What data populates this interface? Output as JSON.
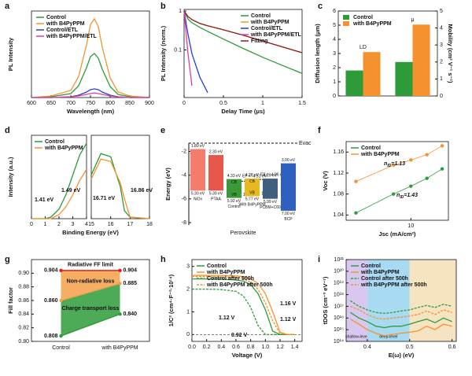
{
  "chart_data": [
    {
      "label": "a",
      "type": "line",
      "xlabel": "Wavelength (nm)",
      "ylabel": "PL Intensity",
      "xlim": [
        600,
        900
      ],
      "xticks": [
        600,
        650,
        700,
        750,
        800,
        850,
        900
      ],
      "ylim": [
        0,
        1.1
      ],
      "x": [
        600,
        650,
        700,
        720,
        740,
        750,
        760,
        770,
        780,
        800,
        820,
        850,
        900
      ],
      "series": [
        {
          "name": "Control",
          "color": "#2e9b3a",
          "values": [
            0,
            0.01,
            0.05,
            0.15,
            0.38,
            0.52,
            0.56,
            0.5,
            0.36,
            0.14,
            0.04,
            0.01,
            0
          ]
        },
        {
          "name": "with B4PyPPM",
          "color": "#f5922f",
          "values": [
            0,
            0.02,
            0.09,
            0.27,
            0.67,
            0.93,
            1.0,
            0.9,
            0.64,
            0.25,
            0.07,
            0.02,
            0
          ]
        },
        {
          "name": "Control/ETL",
          "color": "#2340d0",
          "values": [
            0,
            0,
            0.01,
            0.03,
            0.07,
            0.1,
            0.11,
            0.1,
            0.07,
            0.03,
            0.01,
            0,
            0
          ]
        },
        {
          "name": "with B4PyPPM/ETL",
          "color": "#e33aa0",
          "values": [
            0,
            0,
            0.01,
            0.02,
            0.04,
            0.05,
            0.06,
            0.05,
            0.04,
            0.02,
            0.01,
            0,
            0
          ]
        }
      ]
    },
    {
      "label": "b",
      "type": "line",
      "xlabel": "Delay Time (μs)",
      "ylabel": "PL Intensity (norm.)",
      "xlim": [
        0,
        1.5
      ],
      "xticks": [
        0,
        0.5,
        1,
        1.5
      ],
      "ylim": [
        0.006,
        1.1
      ],
      "yticks": [
        1,
        0.1
      ],
      "ylog": true,
      "x": [
        0,
        0.05,
        0.1,
        0.2,
        0.3,
        0.5,
        0.75,
        1,
        1.25,
        1.5
      ],
      "series": [
        {
          "name": "Control",
          "color": "#2e9b3a",
          "values": [
            1,
            0.62,
            0.5,
            0.38,
            0.3,
            0.19,
            0.11,
            0.065,
            0.04,
            0.025
          ]
        },
        {
          "name": "with B4PyPPM",
          "color": "#f5922f",
          "values": [
            1,
            0.72,
            0.6,
            0.48,
            0.42,
            0.33,
            0.24,
            0.17,
            0.12,
            0.085
          ]
        },
        {
          "name": "Control/ETL",
          "color": "#2340d0",
          "values": [
            1,
            0.25,
            0.08,
            0.02,
            0.008,
            null,
            null,
            null,
            null,
            null
          ]
        },
        {
          "name": "with B4PyPPM/ETL",
          "color": "#e33aa0",
          "values": [
            1,
            0.08,
            0.012,
            null,
            null,
            null,
            null,
            null,
            null,
            null
          ]
        },
        {
          "name": "Fitting",
          "color": "#8b2020",
          "values": [
            1,
            0.72,
            0.6,
            0.48,
            0.42,
            0.33,
            0.24,
            0.17,
            0.12,
            0.085
          ]
        }
      ]
    },
    {
      "label": "c",
      "type": "bar",
      "ylabel": "Diffusion length (μm)",
      "y2label": "Mobility (cm² V⁻¹ s⁻¹)",
      "categories": [
        "LD",
        "μ"
      ],
      "category_axis": [
        "y",
        "y2"
      ],
      "ylim": [
        0,
        6
      ],
      "yticks": [
        0,
        1,
        2,
        3,
        4,
        5,
        6
      ],
      "y2lim": [
        0,
        5
      ],
      "y2ticks": [
        0,
        1,
        2,
        3,
        4,
        5
      ],
      "series": [
        {
          "name": "Control",
          "color": "#2e9b3a",
          "values": [
            1.8,
            2.0
          ]
        },
        {
          "name": "with B4PyPPM",
          "color": "#f5922f",
          "values": [
            3.1,
            4.2
          ]
        }
      ]
    },
    {
      "label": "d",
      "type": "line",
      "ylabel": "Intensity (a.u.)",
      "xlim": [
        0,
        4
      ],
      "xticks": [
        0,
        1,
        2,
        3,
        4
      ],
      "ylim": [
        0,
        1.05
      ],
      "x": [
        0,
        0.5,
        1,
        1.41,
        2,
        2.5,
        3,
        3.5,
        4
      ],
      "series": [
        {
          "name": "Control",
          "color": "#2e9b3a",
          "values": [
            0,
            0,
            0,
            0.02,
            0.12,
            0.3,
            0.55,
            0.8,
            0.95
          ]
        },
        {
          "name": "with B4PyPPM",
          "color": "#f5922f",
          "values": [
            0,
            0,
            0,
            0,
            0.05,
            0.15,
            0.3,
            0.48,
            0.62
          ]
        }
      ],
      "annotations": [
        {
          "text": "1.41 eV",
          "color": "#2e9b3a"
        },
        {
          "text": "1.49 eV",
          "color": "#f5922f"
        }
      ]
    },
    {
      "type": "line",
      "xlabel": "Binding Energy (eV)",
      "xlim": [
        15,
        18
      ],
      "xticks": [
        15,
        16,
        17,
        18
      ],
      "ylim": [
        0,
        1.05
      ],
      "x": [
        15,
        15.5,
        16,
        16.5,
        16.71,
        17,
        17.5,
        18
      ],
      "series": [
        {
          "color": "#2e9b3a",
          "values": [
            0.55,
            0.82,
            0.78,
            0.4,
            0.1,
            0.02,
            0.01,
            0
          ]
        },
        {
          "color": "#f5922f",
          "values": [
            0.5,
            0.75,
            0.72,
            0.45,
            0.25,
            0.02,
            0.01,
            0
          ]
        }
      ],
      "annotations": [
        {
          "text": "16.71 eV",
          "color": "#2e9b3a"
        },
        {
          "text": "16.86 eV",
          "color": "#f5922f"
        }
      ]
    },
    {
      "label": "e",
      "type": "energy",
      "ylabel": "Energy (eV)",
      "ylim": [
        -8.2,
        -1.3
      ],
      "yticks": [
        -2,
        -4,
        -6,
        -8
      ],
      "evac": "Evac",
      "group_label": "Perovskite",
      "blocks": [
        {
          "name": "NiOx",
          "color": "#f47c6c",
          "top": -1.8,
          "bottom": -5.3,
          "top_label": "1.80 eV",
          "bottom_label": "5.30 eV"
        },
        {
          "name": "PTAA",
          "color": "#e8584a",
          "top": -2.3,
          "bottom": -5.3,
          "top_label": "2.30 eV",
          "bottom_label": "5.30 eV"
        },
        {
          "name": "Control",
          "color": "#3a9a3a",
          "top": -4.33,
          "bottom": -5.92,
          "top_label": "4.33 eV",
          "bottom_label": "5.92 eV",
          "cb": "CB",
          "vb": "VB",
          "fermi": -4.51,
          "fermi_label": "EF = -4.51 eV",
          "gap_label": "1.61 eV"
        },
        {
          "name": "With B4PyPPM",
          "color": "#e8b820",
          "top": -4.28,
          "bottom": -5.77,
          "top_label": "4.28 eV",
          "bottom_label": "5.77 eV",
          "cb": "CB",
          "vb": "VB",
          "fermi": -4.36,
          "fermi_label": "EF = -4.36 eV",
          "gap_label": "1.49 eV"
        },
        {
          "name": "PCBM+C60",
          "color": "#3f5f7f",
          "top": -4.29,
          "bottom": -5.99,
          "top_label": "4.29 eV",
          "bottom_label": "5.99 eV"
        },
        {
          "name": "BCP",
          "color": "#2f5fbf",
          "top": -3.0,
          "bottom": -7.0,
          "top_label": "3.00 eV",
          "bottom_label": "7.00 eV"
        }
      ]
    },
    {
      "label": "f",
      "type": "scatter",
      "xlabel": "Jsc (mA/cm²)",
      "ylabel": "Voc (V)",
      "xlog": true,
      "xlim": [
        1.5,
        30
      ],
      "xticks": [
        10
      ],
      "ylim": [
        1.03,
        1.18
      ],
      "yticks": [
        1.04,
        1.08,
        1.12,
        1.16
      ],
      "x": [
        2,
        6,
        10,
        16,
        25
      ],
      "series": [
        {
          "name": "Control",
          "color": "#2e9b3a",
          "values": [
            1.044,
            1.08,
            1.095,
            1.11,
            1.128
          ]
        },
        {
          "name": "with B4PyPPM",
          "color": "#f5922f",
          "values": [
            1.104,
            1.135,
            1.145,
            1.155,
            1.172
          ]
        }
      ],
      "annotations": [
        {
          "text": "n",
          "sub": "ID",
          "tail": "=1.13",
          "color": "#f5922f"
        },
        {
          "text": "n",
          "sub": "ID",
          "tail": "=1.43",
          "color": "#2e9b3a"
        }
      ]
    },
    {
      "label": "g",
      "type": "ff",
      "ylabel": "Fill factor",
      "categories": [
        "Control",
        "with B4PyPPM"
      ],
      "ylim": [
        0.8,
        0.92
      ],
      "yticks": [
        {
          "value": 0.8,
          "label": "0.80"
        },
        0.82,
        0.84,
        0.86,
        0.88,
        {
          "value": 0.9,
          "label": "0.90"
        }
      ],
      "series": [
        {
          "name": "Radiative FF  limit",
          "color": "#e02020",
          "values": [
            0.904,
            0.904
          ]
        },
        {
          "name": "Non-radiative loss",
          "color": "#f5a04a",
          "values": [
            0.86,
            0.885
          ],
          "value_labels": [
            "0.860",
            "0.885"
          ]
        },
        {
          "name": "Charge transport loss",
          "color": "#2e9b3a",
          "values": [
            0.808,
            0.84
          ],
          "value_labels": [
            "0.808",
            "0.840"
          ]
        }
      ]
    },
    {
      "label": "h",
      "type": "line",
      "xlabel": "Voltage (V)",
      "ylabel": "1/C² (cm⁴·F⁻²·10¹⁴)",
      "xlim": [
        0,
        1.5
      ],
      "xticks": [
        {
          "value": 0,
          "label": "0.0"
        },
        0.2,
        0.4,
        0.6,
        0.8,
        {
          "value": 1,
          "label": "1.0"
        },
        1.2,
        1.4
      ],
      "ylim": [
        -0.3,
        3.3
      ],
      "yticks": [
        0,
        1,
        2,
        3
      ],
      "x": [
        0,
        0.2,
        0.4,
        0.6,
        0.7,
        0.8,
        0.9,
        1.0,
        1.1,
        1.2,
        1.3,
        1.4
      ],
      "series": [
        {
          "name": "Control",
          "color": "#2e9b3a",
          "values": [
            2.45,
            2.45,
            2.44,
            2.4,
            2.35,
            2.2,
            1.8,
            1.1,
            0.15,
            0,
            0,
            0
          ]
        },
        {
          "name": "with B4PyPPM",
          "color": "#f5922f",
          "values": [
            2.6,
            2.6,
            2.6,
            2.58,
            2.55,
            2.45,
            2.25,
            1.8,
            1.0,
            0.1,
            0,
            0
          ]
        },
        {
          "name": "Control after 500h",
          "color": "#2e9b3a",
          "dash": true,
          "values": [
            2.0,
            2.0,
            1.98,
            1.9,
            1.7,
            1.2,
            0.4,
            0,
            0,
            0,
            0,
            0
          ]
        },
        {
          "name": "with B4PyPPM after 500h",
          "color": "#f5922f",
          "dash": true,
          "values": [
            2.55,
            2.55,
            2.54,
            2.5,
            2.45,
            2.3,
            2.0,
            1.4,
            0.6,
            0.05,
            0,
            0
          ]
        }
      ],
      "annotations": [
        {
          "text": "1.12 V",
          "color": "#2e9b3a"
        },
        {
          "text": "0.92 V",
          "color": "#2e9b3a"
        },
        {
          "text": "1.16 V",
          "color": "#f5922f"
        },
        {
          "text": "1.12 V",
          "color": "#f5922f"
        }
      ]
    },
    {
      "label": "i",
      "type": "line",
      "xlabel": "E(ω) (eV)",
      "ylabel": "tDOS (cm⁻³ eV⁻¹)",
      "ylog": true,
      "xlim": [
        0.35,
        0.61
      ],
      "xticks": [
        0.4,
        0.5,
        0.6
      ],
      "ylim": [
        100000000000000.0,
        1e+21
      ],
      "yticks": [
        {
          "value": 100000000000000.0,
          "label": "10¹⁴"
        },
        {
          "value": 1000000000000000.0,
          "label": "10¹⁵"
        },
        {
          "value": 1e+16,
          "label": "10¹⁶"
        },
        {
          "value": 1e+17,
          "label": "10¹⁷"
        },
        {
          "value": 1e+18,
          "label": "10¹⁸"
        },
        {
          "value": 1e+19,
          "label": "10¹⁹"
        },
        {
          "value": 1e+20,
          "label": "10²⁰"
        },
        {
          "value": 1e+21,
          "label": "10²¹"
        }
      ],
      "regions": [
        {
          "from": 0.35,
          "to": 0.4,
          "color": "#d8c8f0",
          "label": "shallow-level"
        },
        {
          "from": 0.4,
          "to": 0.5,
          "color": "#a8daf2",
          "label": "deep-level"
        },
        {
          "from": 0.5,
          "to": 0.61,
          "color": "#f6e3c2"
        }
      ],
      "x": [
        0.36,
        0.38,
        0.4,
        0.42,
        0.44,
        0.46,
        0.48,
        0.5,
        0.52,
        0.54,
        0.56,
        0.58,
        0.6
      ],
      "series": [
        {
          "name": "Control",
          "color": "#2e9b3a",
          "values": [
            3e+16,
            1e+16,
            5000000000000000.0,
            2000000000000000.0,
            1500000000000000.0,
            2000000000000000.0,
            2000000000000000.0,
            3000000000000000.0,
            5000000000000000.0,
            8000000000000000.0,
            4000000000000000.0,
            1e+16,
            5000000000000000.0
          ]
        },
        {
          "name": "with B4PyPPM",
          "color": "#f5922f",
          "values": [
            8000000000000000.0,
            3000000000000000.0,
            1000000000000000.0,
            500000000000000.0,
            300000000000000.0,
            400000000000000.0,
            500000000000000.0,
            600000000000000.0,
            800000000000000.0,
            2000000000000000.0,
            1000000000000000.0,
            3000000000000000.0,
            2000000000000000.0
          ]
        },
        {
          "name": "Control after 500h",
          "color": "#2e9b3a",
          "dash": true,
          "values": [
            3e+17,
            1e+17,
            5e+16,
            3e+16,
            2.5e+16,
            3e+16,
            4e+16,
            5e+16,
            8e+16,
            1.2e+17,
            8e+16,
            1.5e+17,
            1e+17
          ]
        },
        {
          "name": "with B4PyPPM after 500h",
          "color": "#f5922f",
          "dash": true,
          "values": [
            1e+17,
            5e+16,
            2e+16,
            1e+16,
            8000000000000000.0,
            1e+16,
            1.2e+16,
            1.5e+16,
            2e+16,
            4e+16,
            2e+16,
            5e+16,
            3e+16
          ]
        }
      ]
    }
  ]
}
